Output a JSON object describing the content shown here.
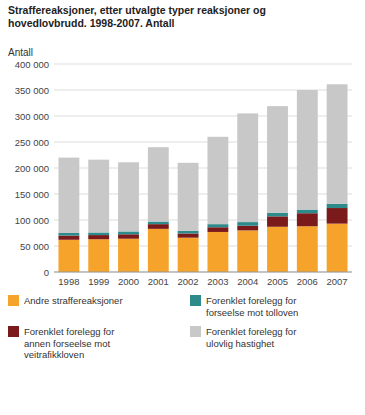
{
  "chart_data": {
    "type": "bar",
    "title": "Straffereaksjoner, etter utvalgte typer reaksjoner og\nhovedlovbrudd. 1998-2007. Antall",
    "y_label": "Antall",
    "categories": [
      "1998",
      "1999",
      "2000",
      "2001",
      "2002",
      "2003",
      "2004",
      "2005",
      "2006",
      "2007"
    ],
    "stacked": true,
    "grid": true,
    "legend": "bottom",
    "ylim": [
      0,
      400000
    ],
    "yticks": [
      0,
      {
        "value": 50000,
        "label": "50 000"
      },
      {
        "value": 100000,
        "label": "100 000"
      },
      {
        "value": 150000,
        "label": "150 000"
      },
      {
        "value": 200000,
        "label": "200 000"
      },
      {
        "value": 250000,
        "label": "250 000"
      },
      {
        "value": 300000,
        "label": "300 000"
      },
      {
        "value": 350000,
        "label": "350 000"
      },
      {
        "value": 400000,
        "label": "400 000"
      }
    ],
    "series": [
      {
        "name": "Andre straffereaksjoner",
        "color": "#f5a32a",
        "values": [
          62000,
          63000,
          64000,
          83000,
          66000,
          77000,
          80000,
          87000,
          88000,
          93000
        ]
      },
      {
        "name": "Forenklet forelegg for\nannen forseelse mot\nveitrafikkloven",
        "color": "#7a1a1a",
        "values": [
          8000,
          8000,
          8500,
          9000,
          8000,
          9000,
          9000,
          20000,
          25000,
          30000
        ]
      },
      {
        "name": "Forenklet forelegg for\nforseelse mot tolloven",
        "color": "#2e8b8b",
        "values": [
          5000,
          5000,
          5500,
          5000,
          5000,
          6000,
          7000,
          7000,
          7000,
          8000
        ]
      },
      {
        "name": "Forenklet forelegg for\nulovlig hastighet",
        "color": "#c8c8c8",
        "values": [
          145000,
          140000,
          133000,
          143000,
          131000,
          168000,
          209000,
          205000,
          230000,
          230000
        ]
      }
    ]
  }
}
